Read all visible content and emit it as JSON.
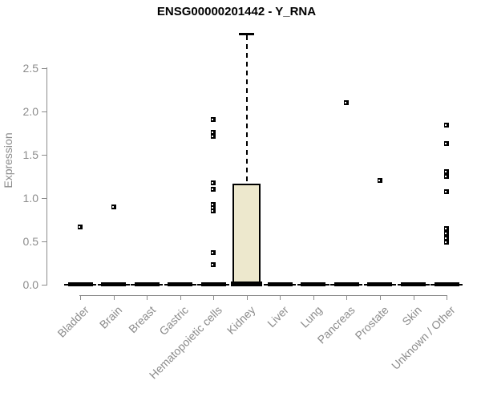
{
  "title": "ENSG00000201442 - Y_RNA",
  "colors": {
    "background": "#ffffff",
    "title_text": "#000000",
    "axis_line": "#8c8c8c",
    "tick_text": "#8c8c8c",
    "box_fill": "#ede8cd",
    "box_border": "#000000",
    "marker": "#000000"
  },
  "chart_data": {
    "type": "boxplot",
    "title": "ENSG00000201442 - Y_RNA",
    "xlabel": "",
    "ylabel": "Expression",
    "ylim": [
      0,
      2.9
    ],
    "yticks": [
      0.0,
      0.5,
      1.0,
      1.5,
      2.0,
      2.5
    ],
    "ytick_labels": [
      "0.0",
      "0.5",
      "1.0",
      "1.5",
      "2.0",
      "2.5"
    ],
    "grid": false,
    "legend": false,
    "categories": [
      "Bladder",
      "Brain",
      "Breast",
      "Gastric",
      "Hematopoietic cells",
      "Kidney",
      "Liver",
      "Lung",
      "Pancreas",
      "Prostate",
      "Skin",
      "Unknown / Other"
    ],
    "boxes": [
      {
        "category": "Bladder",
        "q1": 0,
        "median": 0,
        "q3": 0,
        "whisker_low": 0,
        "whisker_high": 0,
        "outliers": [
          0.67
        ]
      },
      {
        "category": "Brain",
        "q1": 0,
        "median": 0,
        "q3": 0,
        "whisker_low": 0,
        "whisker_high": 0,
        "outliers": [
          0.9
        ]
      },
      {
        "category": "Breast",
        "q1": 0,
        "median": 0,
        "q3": 0,
        "whisker_low": 0,
        "whisker_high": 0,
        "outliers": []
      },
      {
        "category": "Gastric",
        "q1": 0,
        "median": 0,
        "q3": 0,
        "whisker_low": 0,
        "whisker_high": 0,
        "outliers": []
      },
      {
        "category": "Hematopoietic cells",
        "q1": 0,
        "median": 0,
        "q3": 0,
        "whisker_low": 0,
        "whisker_high": 0,
        "outliers": [
          1.91,
          1.76,
          1.71,
          1.18,
          1.1,
          0.93,
          0.89,
          0.85,
          0.37,
          0.23
        ]
      },
      {
        "category": "Kidney",
        "q1": 0,
        "median": 0.02,
        "q3": 1.17,
        "whisker_low": 0,
        "whisker_high": 2.89,
        "outliers": []
      },
      {
        "category": "Liver",
        "q1": 0,
        "median": 0,
        "q3": 0,
        "whisker_low": 0,
        "whisker_high": 0,
        "outliers": []
      },
      {
        "category": "Lung",
        "q1": 0,
        "median": 0,
        "q3": 0,
        "whisker_low": 0,
        "whisker_high": 0,
        "outliers": []
      },
      {
        "category": "Pancreas",
        "q1": 0,
        "median": 0,
        "q3": 0,
        "whisker_low": 0,
        "whisker_high": 0,
        "outliers": [
          2.1
        ]
      },
      {
        "category": "Prostate",
        "q1": 0,
        "median": 0,
        "q3": 0,
        "whisker_low": 0,
        "whisker_high": 0,
        "outliers": [
          1.2
        ]
      },
      {
        "category": "Skin",
        "q1": 0,
        "median": 0,
        "q3": 0,
        "whisker_low": 0,
        "whisker_high": 0,
        "outliers": []
      },
      {
        "category": "Unknown / Other",
        "q1": 0,
        "median": 0,
        "q3": 0,
        "whisker_low": 0,
        "whisker_high": 0,
        "outliers": [
          1.84,
          1.63,
          1.31,
          1.25,
          1.07,
          0.65,
          0.59,
          0.54,
          0.49
        ]
      }
    ]
  }
}
